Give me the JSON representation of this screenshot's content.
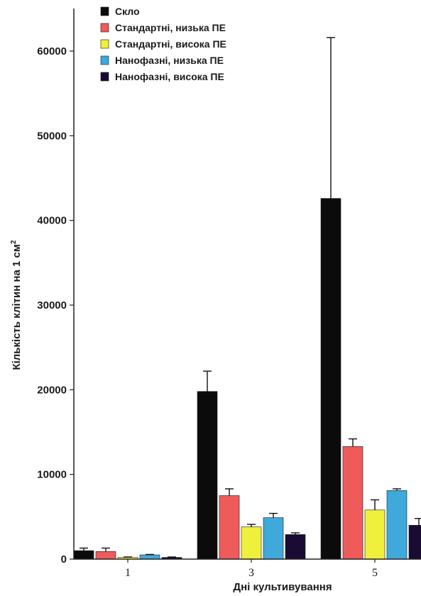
{
  "chart_data": {
    "type": "bar",
    "categories": [
      "1",
      "3",
      "5"
    ],
    "series": [
      {
        "name": "Скло",
        "color": "#0b0b0b",
        "values": [
          1000,
          19800,
          42600
        ],
        "errors": [
          300,
          2400,
          19000
        ]
      },
      {
        "name": "Стандартні, низька ПЕ",
        "color": "#ef5b5b",
        "values": [
          900,
          7500,
          13300
        ],
        "errors": [
          400,
          800,
          900
        ]
      },
      {
        "name": "Стандартні, висока ПЕ",
        "color": "#eef03c",
        "values": [
          200,
          3800,
          5800
        ],
        "errors": [
          50,
          300,
          1200
        ]
      },
      {
        "name": "Нанофазні, низька ПЕ",
        "color": "#3fa9dc",
        "values": [
          500,
          4900,
          8100
        ],
        "errors": [
          50,
          500,
          200
        ]
      },
      {
        "name": "Нанофазні, висока ПЕ",
        "color": "#1a0b33",
        "values": [
          200,
          2900,
          4000
        ],
        "errors": [
          50,
          200,
          800
        ]
      }
    ],
    "yticks": [
      "0",
      "10000",
      "20000",
      "30000",
      "40000",
      "50000",
      "60000"
    ],
    "ylim": [
      0,
      60000
    ],
    "ylabel": "Кількість клітин на 1 см",
    "ylabel_superscript": "2",
    "xlabel": "Дні культивування",
    "legend_placement": "top-left",
    "grid": false
  }
}
